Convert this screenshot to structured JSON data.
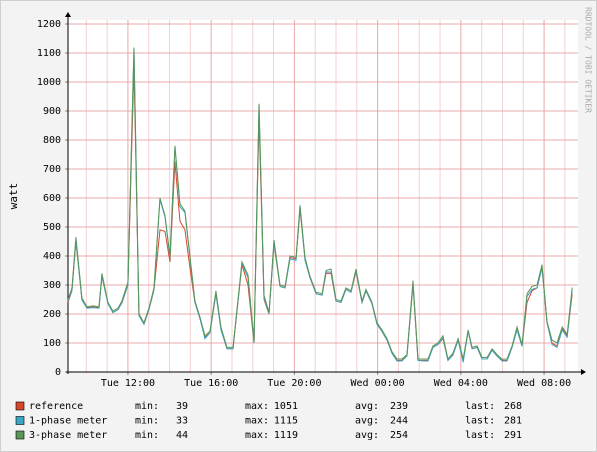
{
  "chart_data": {
    "type": "line",
    "y_label": "watt",
    "watermark": "RRDTOOL / TOBI OETIKER",
    "grid": true,
    "xlim": [
      9.12,
      33.63
    ],
    "ylim": [
      0,
      1200
    ],
    "yticks": [
      0,
      100,
      200,
      300,
      400,
      500,
      600,
      700,
      800,
      900,
      1000,
      1100,
      1200
    ],
    "xticks": [
      {
        "value": 12,
        "label": "Tue 12:00"
      },
      {
        "value": 16,
        "label": "Tue 16:00"
      },
      {
        "value": 20,
        "label": "Tue 20:00"
      },
      {
        "value": 24,
        "label": "Wed 00:00"
      },
      {
        "value": 28,
        "label": "Wed 04:00"
      },
      {
        "value": 32,
        "label": "Wed 08:00"
      }
    ],
    "x_minor_ticks": [
      10,
      11,
      13,
      14,
      15,
      17,
      18,
      19,
      21,
      22,
      23,
      25,
      26,
      27,
      29,
      30,
      31,
      33
    ],
    "x": [
      9.12,
      9.31,
      9.5,
      9.79,
      10.03,
      10.32,
      10.61,
      10.75,
      11.04,
      11.28,
      11.52,
      11.71,
      12.0,
      12.29,
      12.53,
      12.77,
      13.01,
      13.25,
      13.54,
      13.78,
      14.02,
      14.26,
      14.5,
      14.74,
      14.98,
      15.22,
      15.46,
      15.7,
      15.94,
      16.23,
      16.47,
      16.76,
      17.05,
      17.48,
      17.77,
      18.06,
      18.3,
      18.54,
      18.78,
      19.02,
      19.31,
      19.55,
      19.79,
      20.08,
      20.27,
      20.51,
      20.75,
      21.04,
      21.33,
      21.52,
      21.76,
      22.0,
      22.24,
      22.48,
      22.72,
      22.96,
      23.25,
      23.44,
      23.73,
      23.97,
      24.21,
      24.45,
      24.69,
      24.93,
      25.17,
      25.41,
      25.7,
      25.94,
      26.18,
      26.42,
      26.66,
      26.9,
      27.14,
      27.38,
      27.62,
      27.87,
      28.11,
      28.35,
      28.54,
      28.78,
      29.02,
      29.26,
      29.5,
      29.74,
      29.98,
      30.22,
      30.46,
      30.7,
      30.94,
      31.18,
      31.42,
      31.66,
      31.9,
      32.14,
      32.38,
      32.62,
      32.87,
      33.11,
      33.35
    ],
    "stat_labels": {
      "min": "min:",
      "max": "max:",
      "avg": "avg:",
      "last": "last:"
    },
    "series": [
      {
        "name": "reference",
        "color": "#d9472b",
        "min": 39,
        "max": 1051,
        "avg": 239,
        "last": 268,
        "values": [
          240,
          280,
          450,
          250,
          222,
          224,
          222,
          330,
          238,
          205,
          215,
          238,
          300,
          1051,
          195,
          165,
          215,
          282,
          490,
          485,
          380,
          725,
          520,
          490,
          360,
          240,
          185,
          120,
          135,
          270,
          150,
          80,
          80,
          370,
          300,
          100,
          875,
          250,
          200,
          440,
          295,
          290,
          395,
          390,
          560,
          390,
          325,
          270,
          265,
          340,
          340,
          245,
          240,
          285,
          275,
          345,
          240,
          280,
          235,
          165,
          140,
          110,
          65,
          40,
          40,
          55,
          300,
          40,
          40,
          40,
          85,
          95,
          115,
          40,
          60,
          110,
          39,
          140,
          80,
          85,
          45,
          45,
          75,
          55,
          40,
          40,
          85,
          150,
          90,
          240,
          280,
          290,
          360,
          170,
          100,
          90,
          150,
          125,
          268
        ]
      },
      {
        "name": "1-phase meter",
        "color": "#3aa6c6",
        "min": 33,
        "max": 1115,
        "avg": 244,
        "last": 281,
        "values": [
          245,
          282,
          455,
          248,
          220,
          222,
          220,
          330,
          235,
          205,
          215,
          240,
          300,
          1115,
          195,
          165,
          215,
          283,
          595,
          535,
          395,
          775,
          570,
          550,
          395,
          240,
          185,
          115,
          135,
          270,
          145,
          80,
          80,
          375,
          325,
          100,
          920,
          255,
          200,
          445,
          295,
          290,
          390,
          385,
          570,
          385,
          325,
          270,
          265,
          345,
          345,
          245,
          240,
          285,
          275,
          350,
          240,
          280,
          235,
          165,
          140,
          110,
          65,
          38,
          38,
          55,
          305,
          40,
          38,
          38,
          85,
          95,
          118,
          40,
          58,
          110,
          33,
          140,
          80,
          85,
          45,
          45,
          75,
          55,
          38,
          38,
          85,
          145,
          88,
          260,
          285,
          290,
          360,
          170,
          95,
          85,
          145,
          120,
          281
        ]
      },
      {
        "name": "3-phase meter",
        "color": "#5a9658",
        "min": 44,
        "max": 1119,
        "avg": 254,
        "last": 291,
        "values": [
          250,
          290,
          465,
          255,
          225,
          228,
          225,
          340,
          240,
          210,
          220,
          245,
          310,
          1119,
          200,
          170,
          220,
          290,
          600,
          540,
          400,
          780,
          580,
          555,
          400,
          245,
          190,
          125,
          140,
          280,
          155,
          85,
          85,
          380,
          335,
          105,
          925,
          265,
          205,
          455,
          300,
          295,
          400,
          395,
          575,
          395,
          330,
          275,
          270,
          350,
          355,
          250,
          245,
          290,
          280,
          355,
          245,
          285,
          240,
          170,
          145,
          115,
          70,
          45,
          45,
          60,
          315,
          45,
          45,
          45,
          90,
          100,
          125,
          45,
          65,
          115,
          45,
          145,
          85,
          90,
          50,
          50,
          80,
          60,
          44,
          45,
          90,
          155,
          95,
          270,
          295,
          300,
          370,
          175,
          110,
          100,
          155,
          130,
          291
        ]
      }
    ]
  }
}
